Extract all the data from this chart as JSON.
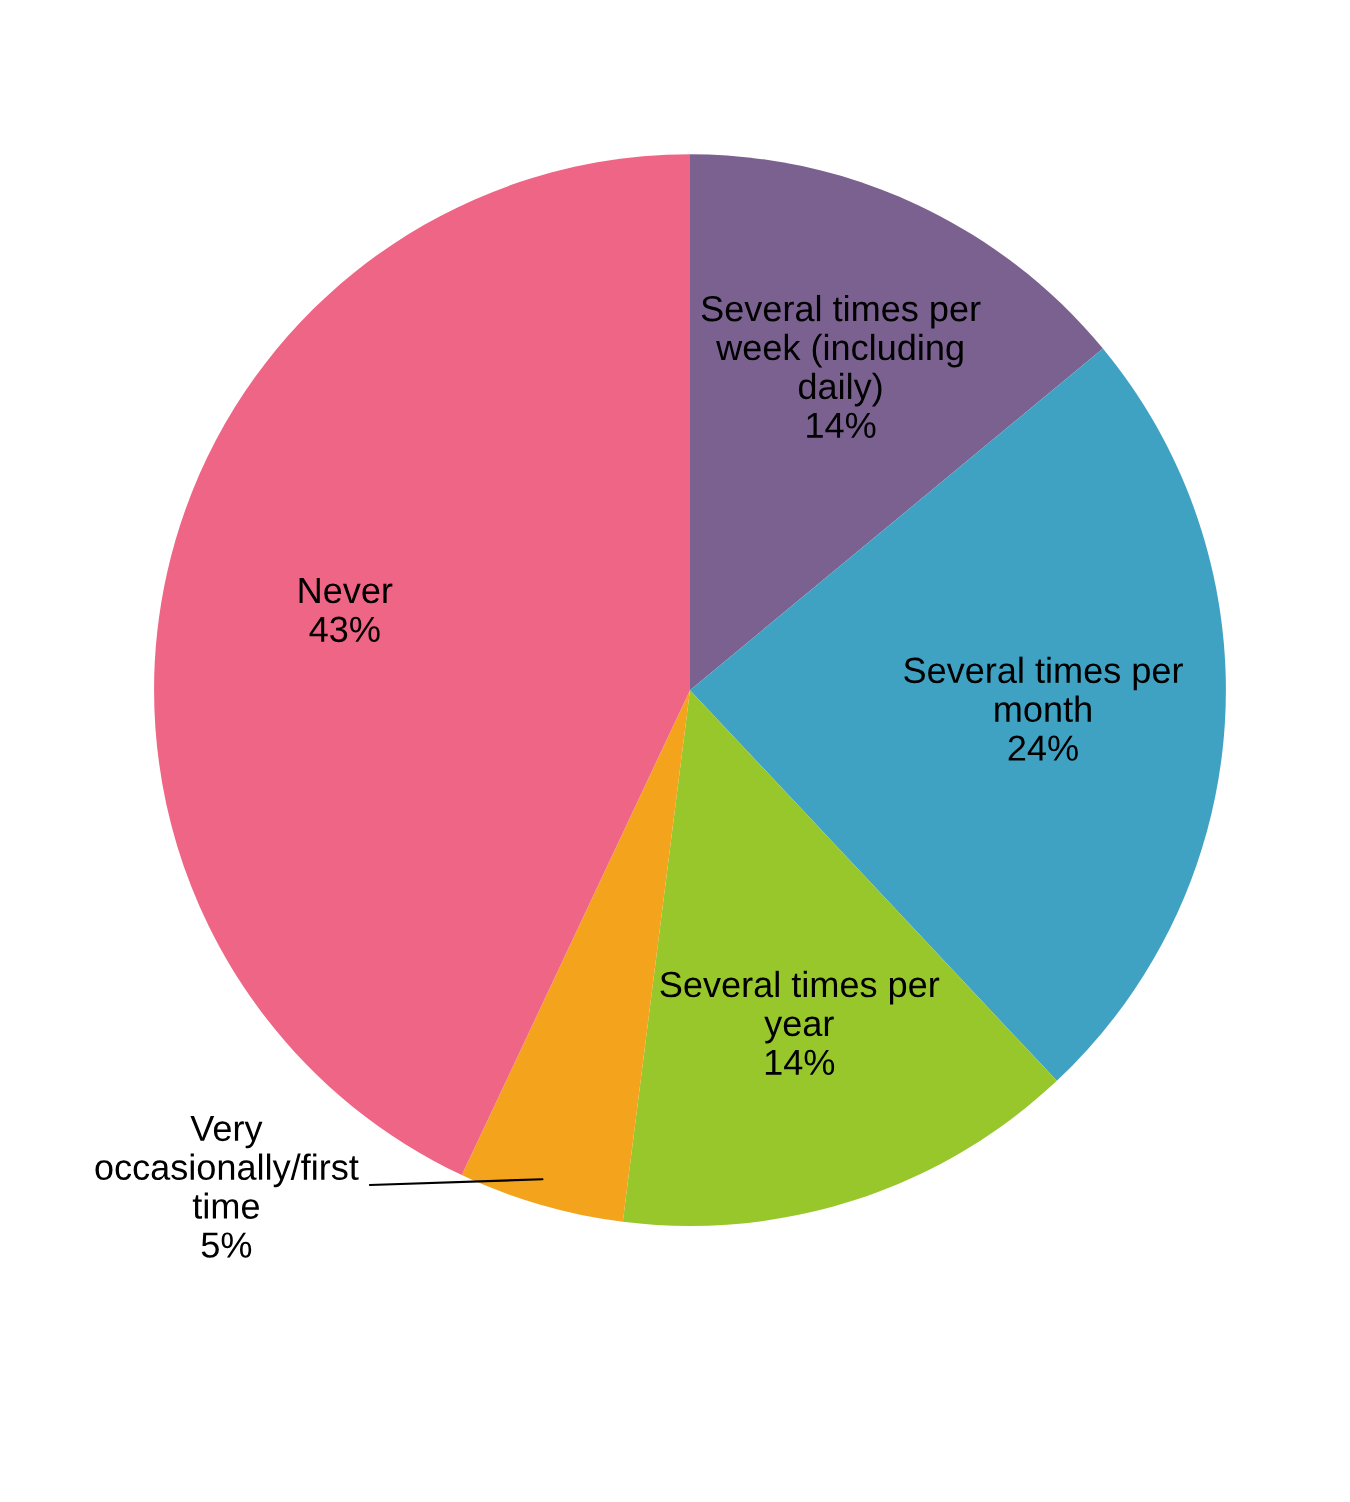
{
  "chart_data": {
    "type": "pie",
    "categories": [
      "Several times per week (including daily)",
      "Several times per month",
      "Several times per year",
      "Very occasionally/first time",
      "Never"
    ],
    "values": [
      14,
      24,
      14,
      5,
      43
    ],
    "colors": [
      "#7b6190",
      "#3fa2c2",
      "#97c72a",
      "#f4a31c",
      "#ef6585"
    ],
    "value_labels": [
      "14%",
      "24%",
      "14%",
      "5%",
      "43%"
    ],
    "legend": false
  }
}
